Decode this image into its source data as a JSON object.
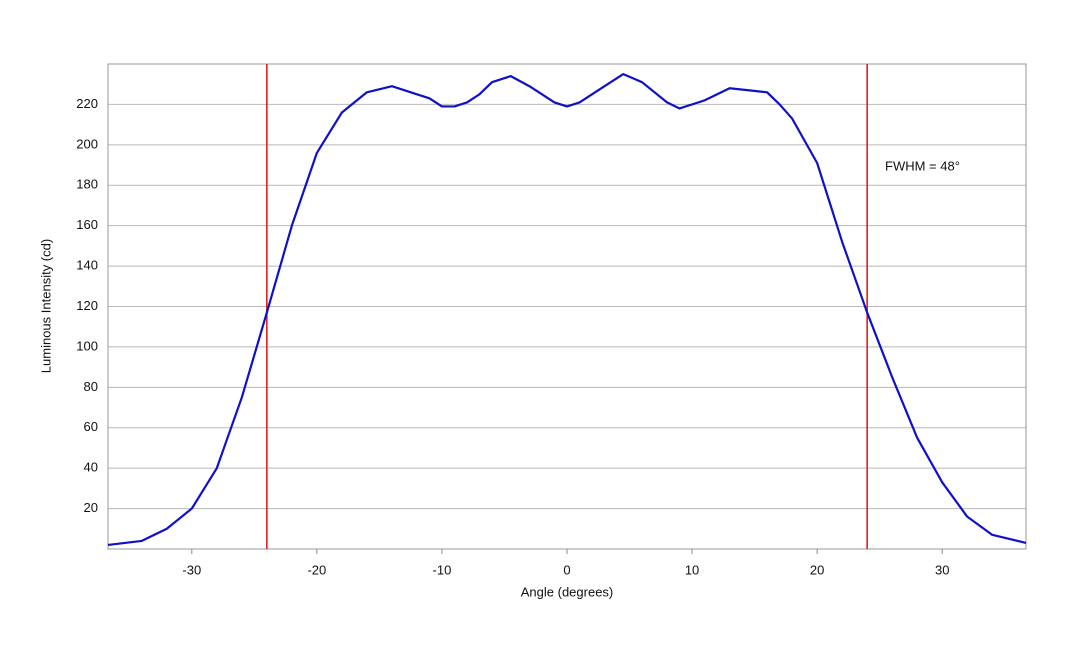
{
  "chart_data": {
    "type": "line",
    "xlabel": "Angle (degrees)",
    "ylabel": "Luminous Intensity (cd)",
    "x": [
      -36.7,
      -34,
      -32,
      -30,
      -28,
      -26,
      -24,
      -22,
      -20,
      -18,
      -16,
      -14,
      -12,
      -11,
      -10,
      -9,
      -8,
      -7,
      -6,
      -4.5,
      -3,
      -1,
      0,
      1,
      3,
      4.5,
      6,
      8,
      9,
      11,
      13,
      14.5,
      16,
      17,
      18,
      20,
      22,
      24,
      26,
      28,
      30,
      32,
      34,
      36.7
    ],
    "series": [
      {
        "color": "#1010cc",
        "values": [
          2,
          4,
          10,
          20,
          40,
          75,
          117,
          160,
          196,
          216,
          226,
          229,
          225,
          223,
          219,
          219,
          221,
          225,
          231,
          234,
          229,
          221,
          219,
          221,
          229,
          235,
          231,
          221,
          218,
          222,
          228,
          227,
          226,
          220,
          213,
          191,
          152,
          117,
          85,
          55,
          33,
          16,
          7,
          3
        ]
      }
    ],
    "vlines": [
      -24,
      24
    ],
    "vline_color": "#e02020",
    "annotation": "FWHM = 48°",
    "xlim": [
      -36.7,
      36.7
    ],
    "xticks": [
      -30,
      -20,
      -10,
      0,
      10,
      20,
      30
    ],
    "ylim": [
      0,
      240
    ],
    "yticks": [
      20,
      40,
      60,
      80,
      100,
      120,
      140,
      160,
      180,
      200,
      220
    ],
    "grid": true
  }
}
